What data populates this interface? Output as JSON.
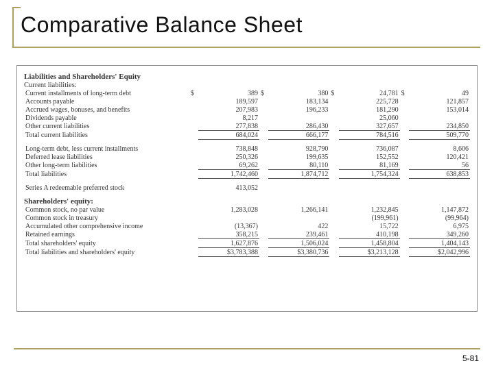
{
  "title": "Comparative Balance Sheet",
  "pageNumber": "5-81",
  "colors": {
    "accent": "#b0a060",
    "text": "#333333",
    "border": "#888888",
    "background": "#ffffff"
  },
  "sheet": {
    "section1": "Liabilities and Shareholders' Equity",
    "currentLiabHeader": "Current liabilities:",
    "rows_current": [
      {
        "label": "Current installments of long-term debt",
        "c1": "389",
        "c2": "380",
        "c3": "24,781",
        "c4": "49",
        "currency": true
      },
      {
        "label": "Accounts payable",
        "c1": "189,597",
        "c2": "183,134",
        "c3": "225,728",
        "c4": "121,857"
      },
      {
        "label": "Accrued wages, bonuses, and benefits",
        "c1": "207,983",
        "c2": "196,233",
        "c3": "181,290",
        "c4": "153,014"
      },
      {
        "label": "Dividends payable",
        "c1": "8,217",
        "c2": "",
        "c3": "25,060",
        "c4": ""
      },
      {
        "label": "Other current liabilities",
        "c1": "277,838",
        "c2": "286,430",
        "c3": "327,657",
        "c4": "234,850",
        "underline": true
      },
      {
        "label": "Total current liabilities",
        "c1": "684,024",
        "c2": "666,177",
        "c3": "784,516",
        "c4": "509,770",
        "underline": true,
        "indent": 2
      }
    ],
    "rows_longterm": [
      {
        "label": "Long-term debt, less current installments",
        "c1": "738,848",
        "c2": "928,790",
        "c3": "736,087",
        "c4": "8,606"
      },
      {
        "label": "Deferred lease liabilities",
        "c1": "250,326",
        "c2": "199,635",
        "c3": "152,552",
        "c4": "120,421"
      },
      {
        "label": "Other long-term liabilities",
        "c1": "69,262",
        "c2": "80,110",
        "c3": "81,169",
        "c4": "56",
        "underline": true
      },
      {
        "label": "Total liabilities",
        "c1": "1,742,460",
        "c2": "1,874,712",
        "c3": "1,754,324",
        "c4": "638,853",
        "underline": true,
        "indent": 2
      }
    ],
    "preferred": {
      "label": "Series A redeemable preferred stock",
      "c1": "413,052",
      "c2": "",
      "c3": "",
      "c4": ""
    },
    "sheHeader": "Shareholders' equity:",
    "rows_she": [
      {
        "label": "Common stock, no par value",
        "c1": "1,283,028",
        "c2": "1,266,141",
        "c3": "1,232,845",
        "c4": "1,147,872"
      },
      {
        "label": "Common stock in treasury",
        "c1": "",
        "c2": "",
        "c3": "(199,961)",
        "c4": "(99,964)"
      },
      {
        "label": "Accumulated other comprehensive income",
        "c1": "(13,367)",
        "c2": "422",
        "c3": "15,722",
        "c4": "6,975"
      },
      {
        "label": "Retained earnings",
        "c1": "358,215",
        "c2": "239,461",
        "c3": "410,198",
        "c4": "349,260",
        "underline": true
      },
      {
        "label": "Total shareholders' equity",
        "c1": "1,627,876",
        "c2": "1,506,024",
        "c3": "1,458,804",
        "c4": "1,404,143",
        "underline": true,
        "indent": 2
      },
      {
        "label": "Total liabilities and shareholders' equity",
        "c1": "$3,783,388",
        "c2": "$3,380,736",
        "c3": "$3,213,128",
        "c4": "$2,042,996",
        "underline": true,
        "indent": 2
      }
    ]
  }
}
